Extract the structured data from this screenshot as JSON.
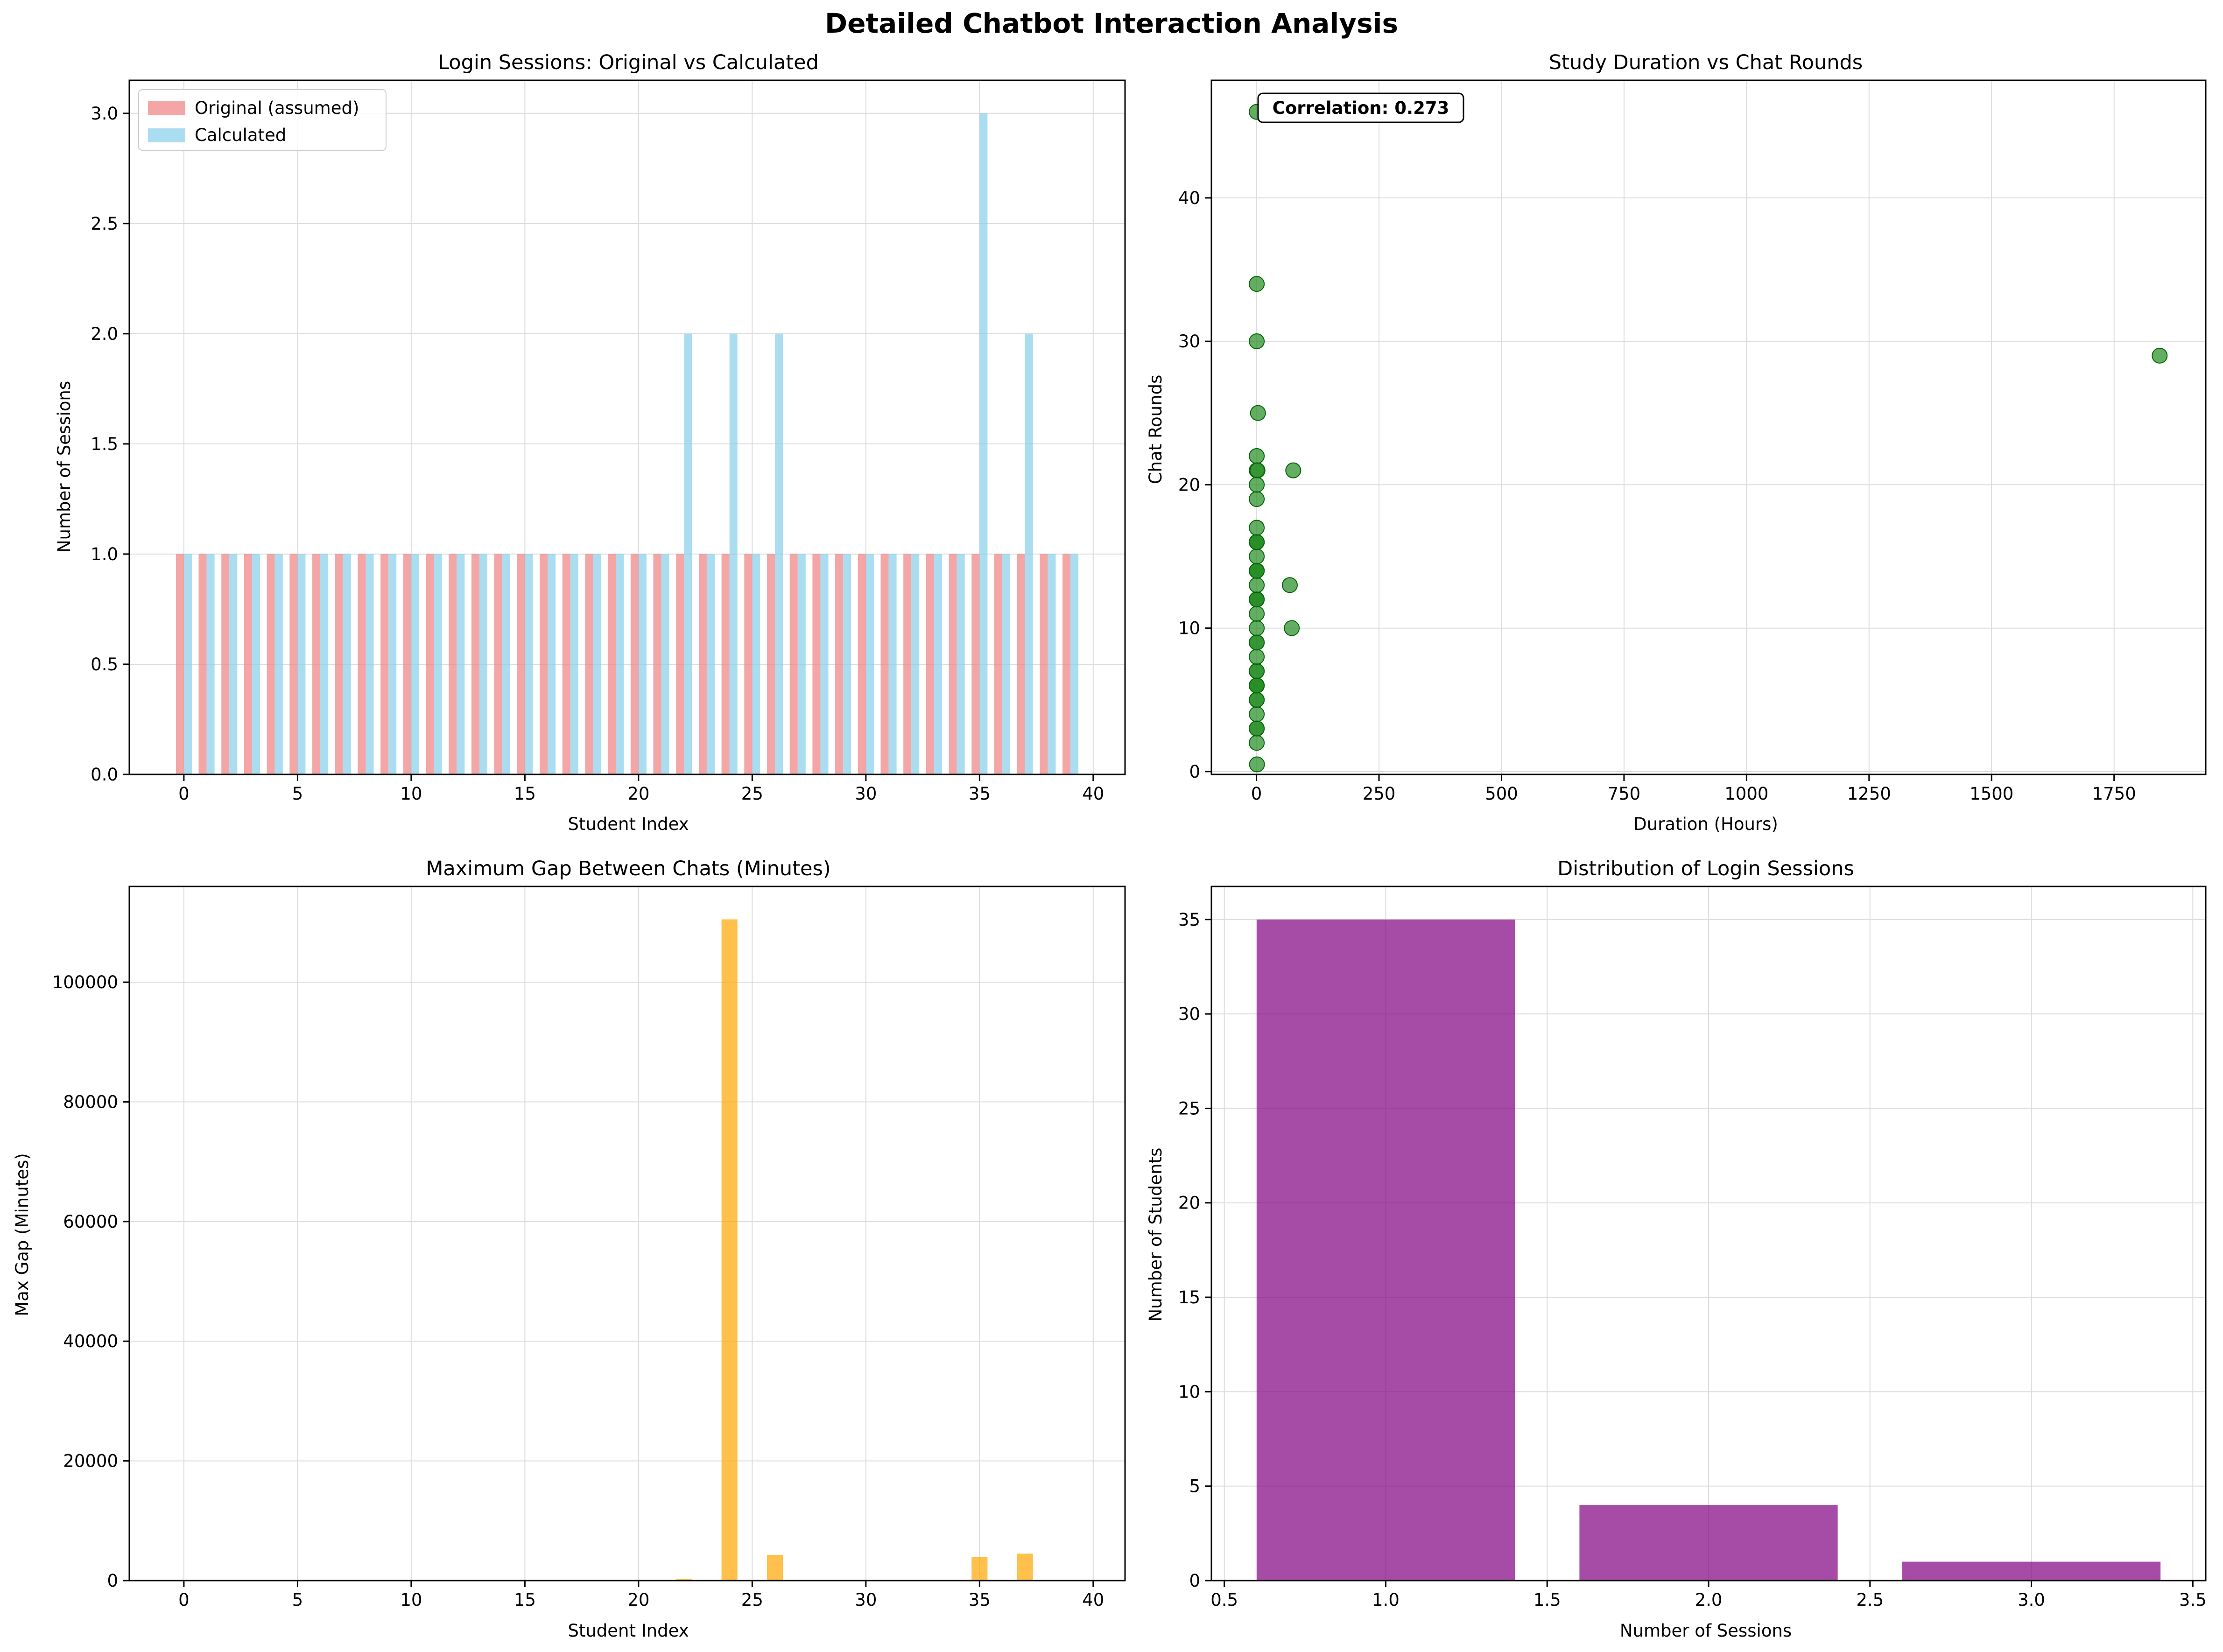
{
  "suptitle": "Detailed Chatbot Interaction Analysis",
  "chart_data": [
    {
      "type": "bar",
      "title": "Login Sessions: Original vs Calculated",
      "xlabel": "Student Index",
      "ylabel": "Number of Sessions",
      "xlim": [
        -2.4,
        41.4
      ],
      "ylim": [
        0,
        3.15
      ],
      "xticks": [
        0,
        5,
        10,
        15,
        20,
        25,
        30,
        35,
        40
      ],
      "xtick_labels": [
        "0",
        "5",
        "10",
        "15",
        "20",
        "25",
        "30",
        "35",
        "40"
      ],
      "yticks": [
        0,
        0.5,
        1,
        1.5,
        2,
        2.5,
        3
      ],
      "ytick_labels": [
        "0.0",
        "0.5",
        "1.0",
        "1.5",
        "2.0",
        "2.5",
        "3.0"
      ],
      "grid": true,
      "legend": "top-left",
      "categories": [
        0,
        1,
        2,
        3,
        4,
        5,
        6,
        7,
        8,
        9,
        10,
        11,
        12,
        13,
        14,
        15,
        16,
        17,
        18,
        19,
        20,
        21,
        22,
        23,
        24,
        25,
        26,
        27,
        28,
        29,
        30,
        31,
        32,
        33,
        34,
        35,
        36,
        37,
        38,
        39
      ],
      "series": [
        {
          "name": "Original (assumed)",
          "color": "#f08080",
          "values": [
            1,
            1,
            1,
            1,
            1,
            1,
            1,
            1,
            1,
            1,
            1,
            1,
            1,
            1,
            1,
            1,
            1,
            1,
            1,
            1,
            1,
            1,
            1,
            1,
            1,
            1,
            1,
            1,
            1,
            1,
            1,
            1,
            1,
            1,
            1,
            1,
            1,
            1,
            1,
            1
          ]
        },
        {
          "name": "Calculated",
          "color": "#87ceeb",
          "values": [
            1,
            1,
            1,
            1,
            1,
            1,
            1,
            1,
            1,
            1,
            1,
            1,
            1,
            1,
            1,
            1,
            1,
            1,
            1,
            1,
            1,
            1,
            2,
            1,
            2,
            1,
            2,
            1,
            1,
            1,
            1,
            1,
            1,
            1,
            1,
            3,
            1,
            2,
            1,
            1
          ]
        }
      ]
    },
    {
      "type": "scatter",
      "title": "Study Duration vs Chat Rounds",
      "xlabel": "Duration (Hours)",
      "ylabel": "Chat Rounds",
      "xlim": [
        -92,
        1937
      ],
      "ylim": [
        -0.2,
        48.2
      ],
      "xticks": [
        0,
        250,
        500,
        750,
        1000,
        1250,
        1500,
        1750
      ],
      "xtick_labels": [
        "0",
        "250",
        "500",
        "750",
        "1000",
        "1250",
        "1500",
        "1750"
      ],
      "yticks": [
        0,
        10,
        20,
        30,
        40
      ],
      "ytick_labels": [
        "0",
        "10",
        "20",
        "30",
        "40"
      ],
      "grid": true,
      "color": "#228b22",
      "annotation": "Correlation: 0.273",
      "x": [
        0.5,
        0.5,
        0.5,
        0.5,
        0.5,
        0.5,
        0.5,
        0.5,
        0.5,
        0.5,
        0.5,
        0.5,
        0.5,
        0.5,
        0.5,
        0.5,
        0.5,
        0.5,
        0.5,
        0.5,
        0.5,
        0.5,
        0.5,
        0.5,
        0.5,
        0.5,
        0.5,
        0.5,
        0.5,
        0.5,
        0.5,
        0.5,
        0.5,
        0.5,
        2,
        1,
        3,
        0.5,
        75,
        68,
        72,
        1843
      ],
      "y": [
        2,
        3,
        3,
        4,
        5,
        5,
        6,
        6,
        6,
        7,
        7,
        8,
        9,
        9,
        10,
        11,
        12,
        12,
        12,
        13,
        14,
        14,
        14,
        15,
        16,
        16,
        16,
        17,
        19,
        21,
        22,
        34,
        30,
        46,
        21,
        0.5,
        25,
        20,
        21,
        13,
        10,
        29
      ]
    },
    {
      "type": "bar",
      "title": "Maximum Gap Between Chats (Minutes)",
      "xlabel": "Student Index",
      "ylabel": "Max Gap (Minutes)",
      "xlim": [
        -2.4,
        41.4
      ],
      "ylim": [
        0,
        116000
      ],
      "xticks": [
        0,
        5,
        10,
        15,
        20,
        25,
        30,
        35,
        40
      ],
      "xtick_labels": [
        "0",
        "5",
        "10",
        "15",
        "20",
        "25",
        "30",
        "35",
        "40"
      ],
      "yticks": [
        0,
        20000,
        40000,
        60000,
        80000,
        100000
      ],
      "ytick_labels": [
        "0",
        "20000",
        "40000",
        "60000",
        "80000",
        "100000"
      ],
      "grid": true,
      "color": "#ffa500",
      "categories": [
        0,
        1,
        2,
        3,
        4,
        5,
        6,
        7,
        8,
        9,
        10,
        11,
        12,
        13,
        14,
        15,
        16,
        17,
        18,
        19,
        20,
        21,
        22,
        23,
        24,
        25,
        26,
        27,
        28,
        29,
        30,
        31,
        32,
        33,
        34,
        35,
        36,
        37,
        38,
        39
      ],
      "values": [
        0,
        0,
        0,
        0,
        0,
        0,
        0,
        0,
        0,
        0,
        0,
        0,
        0,
        0,
        0,
        0,
        0,
        0,
        0,
        0,
        0,
        0,
        300,
        0,
        110500,
        0,
        4300,
        0,
        0,
        0,
        0,
        0,
        0,
        0,
        0,
        3900,
        0,
        4500,
        0,
        0
      ]
    },
    {
      "type": "bar",
      "title": "Distribution of Login Sessions",
      "xlabel": "Number of Sessions",
      "ylabel": "Number of Students",
      "xlim": [
        0.46,
        3.54
      ],
      "ylim": [
        0,
        36.75
      ],
      "xticks": [
        0.5,
        1,
        1.5,
        2,
        2.5,
        3,
        3.5
      ],
      "xtick_labels": [
        "0.5",
        "1.0",
        "1.5",
        "2.0",
        "2.5",
        "3.0",
        "3.5"
      ],
      "yticks": [
        0,
        5,
        10,
        15,
        20,
        25,
        30,
        35
      ],
      "ytick_labels": [
        "0",
        "5",
        "10",
        "15",
        "20",
        "25",
        "30",
        "35"
      ],
      "grid": true,
      "color": "#800080",
      "categories": [
        1,
        2,
        3
      ],
      "values": [
        35,
        4,
        1
      ]
    }
  ]
}
